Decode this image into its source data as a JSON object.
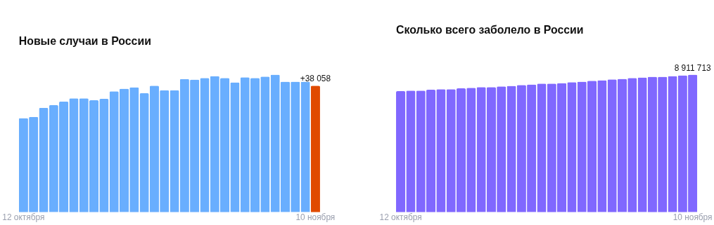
{
  "chart_data": [
    {
      "type": "bar",
      "title": "Новые случаи в России",
      "categories": [
        "12 октября",
        null,
        null,
        null,
        null,
        null,
        null,
        null,
        null,
        null,
        null,
        null,
        null,
        null,
        null,
        null,
        null,
        null,
        null,
        null,
        null,
        null,
        null,
        null,
        null,
        null,
        null,
        null,
        null,
        "10 ноября"
      ],
      "values": [
        28300,
        28700,
        31400,
        32200,
        33300,
        34300,
        34300,
        33700,
        34100,
        36400,
        37200,
        37600,
        35800,
        38100,
        36700,
        36700,
        40100,
        39900,
        40400,
        41000,
        40400,
        39100,
        40600,
        40400,
        40800,
        41400,
        39300,
        39300,
        39300,
        38058
      ],
      "colors": [
        "#69aefe",
        "#69aefe",
        "#69aefe",
        "#69aefe",
        "#69aefe",
        "#69aefe",
        "#69aefe",
        "#69aefe",
        "#69aefe",
        "#69aefe",
        "#69aefe",
        "#69aefe",
        "#69aefe",
        "#69aefe",
        "#69aefe",
        "#69aefe",
        "#69aefe",
        "#69aefe",
        "#69aefe",
        "#69aefe",
        "#69aefe",
        "#69aefe",
        "#69aefe",
        "#69aefe",
        "#69aefe",
        "#69aefe",
        "#69aefe",
        "#69aefe",
        "#69aefe",
        "#e04a00"
      ],
      "value_labels": [
        null,
        null,
        null,
        null,
        null,
        null,
        null,
        null,
        null,
        null,
        null,
        null,
        null,
        null,
        null,
        null,
        null,
        null,
        null,
        null,
        null,
        null,
        null,
        null,
        null,
        null,
        null,
        null,
        null,
        "+38 058"
      ]
    },
    {
      "type": "bar",
      "title": "Сколько всего заболело в России",
      "categories": [
        "12 октября",
        null,
        null,
        null,
        null,
        null,
        null,
        null,
        null,
        null,
        null,
        null,
        null,
        null,
        null,
        null,
        null,
        null,
        null,
        null,
        null,
        null,
        null,
        null,
        null,
        null,
        null,
        null,
        null,
        "10 ноября"
      ],
      "values": [
        7840000,
        7880000,
        7880000,
        7930000,
        7970000,
        7970000,
        8020000,
        8060000,
        8100000,
        8100000,
        8150000,
        8190000,
        8240000,
        8280000,
        8330000,
        8330000,
        8370000,
        8420000,
        8460000,
        8510000,
        8550000,
        8600000,
        8640000,
        8690000,
        8730000,
        8780000,
        8780000,
        8820000,
        8870000,
        8911713
      ],
      "colors": [
        "#8068ff",
        "#8068ff",
        "#8068ff",
        "#8068ff",
        "#8068ff",
        "#8068ff",
        "#8068ff",
        "#8068ff",
        "#8068ff",
        "#8068ff",
        "#8068ff",
        "#8068ff",
        "#8068ff",
        "#8068ff",
        "#8068ff",
        "#8068ff",
        "#8068ff",
        "#8068ff",
        "#8068ff",
        "#8068ff",
        "#8068ff",
        "#8068ff",
        "#8068ff",
        "#8068ff",
        "#8068ff",
        "#8068ff",
        "#8068ff",
        "#8068ff",
        "#8068ff",
        "#8068ff"
      ],
      "value_labels": [
        null,
        null,
        null,
        null,
        null,
        null,
        null,
        null,
        null,
        null,
        null,
        null,
        null,
        null,
        null,
        null,
        null,
        null,
        null,
        null,
        null,
        null,
        null,
        null,
        null,
        null,
        null,
        null,
        null,
        "8 911 713"
      ]
    }
  ]
}
